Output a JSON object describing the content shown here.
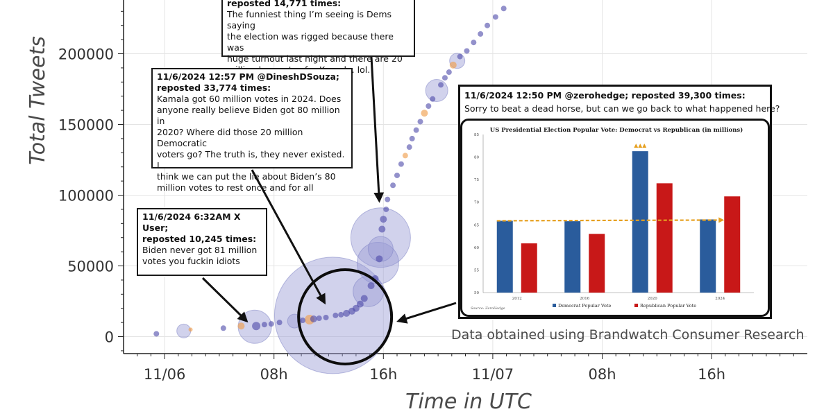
{
  "chart_data": [
    {
      "type": "scatter",
      "title": "",
      "xlabel": "Time in UTC",
      "ylabel": "Total Tweets",
      "x_tick_labels": [
        "11/06",
        "08h",
        "16h",
        "11/07",
        "08h",
        "16h"
      ],
      "x_tick_hours": [
        0,
        8,
        16,
        24,
        32,
        40
      ],
      "xlim_hours": [
        -3,
        47
      ],
      "y_ticks": [
        0,
        50000,
        100000,
        150000,
        200000
      ],
      "ylim": [
        -12000,
        238000
      ],
      "grid": true,
      "legend": "none",
      "colors": {
        "bubble_fill": "#9a9cd4",
        "bubble_dot": "#4b48a8",
        "accent_orange": "#f0a050",
        "grid": "#e4e4e4"
      },
      "points": [
        {
          "x": -0.6,
          "y": 2000,
          "r": 4,
          "c": "dot"
        },
        {
          "x": 1.4,
          "y": 4000,
          "r": 10,
          "c": "fill"
        },
        {
          "x": 1.9,
          "y": 5000,
          "r": 3,
          "c": "orange"
        },
        {
          "x": 4.3,
          "y": 6000,
          "r": 4,
          "c": "dot"
        },
        {
          "x": 5.6,
          "y": 7500,
          "r": 5,
          "c": "orange"
        },
        {
          "x": 6.6,
          "y": 7000,
          "r": 24,
          "c": "fill"
        },
        {
          "x": 6.7,
          "y": 7500,
          "r": 6,
          "c": "dot"
        },
        {
          "x": 7.3,
          "y": 8500,
          "r": 4,
          "c": "dot"
        },
        {
          "x": 7.8,
          "y": 9000,
          "r": 4,
          "c": "dot"
        },
        {
          "x": 8.4,
          "y": 10000,
          "r": 4,
          "c": "dot"
        },
        {
          "x": 9.5,
          "y": 11000,
          "r": 10,
          "c": "fill"
        },
        {
          "x": 10.1,
          "y": 11500,
          "r": 4,
          "c": "dot"
        },
        {
          "x": 10.6,
          "y": 12000,
          "r": 7,
          "c": "orange"
        },
        {
          "x": 10.9,
          "y": 12500,
          "r": 5,
          "c": "dot"
        },
        {
          "x": 11.3,
          "y": 13000,
          "r": 4,
          "c": "dot"
        },
        {
          "x": 11.8,
          "y": 13500,
          "r": 4,
          "c": "dot"
        },
        {
          "x": 12.3,
          "y": 15000,
          "r": 84,
          "c": "fill"
        },
        {
          "x": 12.5,
          "y": 15000,
          "r": 4,
          "c": "dot"
        },
        {
          "x": 12.9,
          "y": 15500,
          "r": 4,
          "c": "dot"
        },
        {
          "x": 13.3,
          "y": 16500,
          "r": 5,
          "c": "dot"
        },
        {
          "x": 13.7,
          "y": 18000,
          "r": 5,
          "c": "dot"
        },
        {
          "x": 14.0,
          "y": 20000,
          "r": 5,
          "c": "dot"
        },
        {
          "x": 14.3,
          "y": 23000,
          "r": 5,
          "c": "dot"
        },
        {
          "x": 14.6,
          "y": 27000,
          "r": 5,
          "c": "dot"
        },
        {
          "x": 14.9,
          "y": 32000,
          "r": 22,
          "c": "fill"
        },
        {
          "x": 15.1,
          "y": 36000,
          "r": 5,
          "c": "dot"
        },
        {
          "x": 15.4,
          "y": 41000,
          "r": 5,
          "c": "dot"
        },
        {
          "x": 15.6,
          "y": 52000,
          "r": 30,
          "c": "fill"
        },
        {
          "x": 15.7,
          "y": 55000,
          "r": 5,
          "c": "dot"
        },
        {
          "x": 15.8,
          "y": 62000,
          "r": 18,
          "c": "fill"
        },
        {
          "x": 15.8,
          "y": 70000,
          "r": 43,
          "c": "fill"
        },
        {
          "x": 15.9,
          "y": 76000,
          "r": 5,
          "c": "dot"
        },
        {
          "x": 16.0,
          "y": 83000,
          "r": 5,
          "c": "dot"
        },
        {
          "x": 16.2,
          "y": 90000,
          "r": 4,
          "c": "dot"
        },
        {
          "x": 16.3,
          "y": 97000,
          "r": 4,
          "c": "dot"
        },
        {
          "x": 16.7,
          "y": 107000,
          "r": 4,
          "c": "dot"
        },
        {
          "x": 17.0,
          "y": 114000,
          "r": 4,
          "c": "dot"
        },
        {
          "x": 17.3,
          "y": 122000,
          "r": 4,
          "c": "dot"
        },
        {
          "x": 17.6,
          "y": 128000,
          "r": 4,
          "c": "orange"
        },
        {
          "x": 17.9,
          "y": 134000,
          "r": 4,
          "c": "dot"
        },
        {
          "x": 18.1,
          "y": 140000,
          "r": 4,
          "c": "dot"
        },
        {
          "x": 18.4,
          "y": 146000,
          "r": 4,
          "c": "dot"
        },
        {
          "x": 18.7,
          "y": 152000,
          "r": 4,
          "c": "dot"
        },
        {
          "x": 19.0,
          "y": 158000,
          "r": 5,
          "c": "orange"
        },
        {
          "x": 19.3,
          "y": 163000,
          "r": 4,
          "c": "dot"
        },
        {
          "x": 19.6,
          "y": 168000,
          "r": 4,
          "c": "dot"
        },
        {
          "x": 19.9,
          "y": 174000,
          "r": 16,
          "c": "fill"
        },
        {
          "x": 20.2,
          "y": 178000,
          "r": 4,
          "c": "dot"
        },
        {
          "x": 20.5,
          "y": 183000,
          "r": 4,
          "c": "dot"
        },
        {
          "x": 20.8,
          "y": 187000,
          "r": 4,
          "c": "dot"
        },
        {
          "x": 21.1,
          "y": 192000,
          "r": 5,
          "c": "orange"
        },
        {
          "x": 21.4,
          "y": 195000,
          "r": 11,
          "c": "fill"
        },
        {
          "x": 21.6,
          "y": 198000,
          "r": 4,
          "c": "dot"
        },
        {
          "x": 22.1,
          "y": 202000,
          "r": 4,
          "c": "dot"
        },
        {
          "x": 22.6,
          "y": 208000,
          "r": 4,
          "c": "dot"
        },
        {
          "x": 23.1,
          "y": 214000,
          "r": 4,
          "c": "dot"
        },
        {
          "x": 23.6,
          "y": 220000,
          "r": 4,
          "c": "dot"
        },
        {
          "x": 24.2,
          "y": 226000,
          "r": 4,
          "c": "dot"
        },
        {
          "x": 24.8,
          "y": 232000,
          "r": 4,
          "c": "dot"
        }
      ],
      "highlight_circle": {
        "x": 13.2,
        "y": 14000,
        "rx": 67,
        "ry": 68
      },
      "arrows": [
        {
          "from": "callout-xuser",
          "x": 6.0,
          "y": 11000
        },
        {
          "from": "callout-dsouza",
          "x": 11.7,
          "y": 24000
        },
        {
          "from": "callout-upper",
          "x": 15.7,
          "y": 96000
        },
        {
          "from": "zerohedge-panel",
          "x": 17.1,
          "y": 11000
        }
      ]
    },
    {
      "type": "bar",
      "title": "US Presidential Election Popular Vote: Democrat vs Republican (in millions)",
      "categories": [
        "2012",
        "2016",
        "2020",
        "2024"
      ],
      "series": [
        {
          "name": "Democrat Popular Vote",
          "color": "#2a5c9c",
          "values": [
            65.9,
            65.8,
            81.3,
            66.2
          ]
        },
        {
          "name": "Republican Popular Vote",
          "color": "#c81818",
          "values": [
            60.9,
            63.0,
            74.2,
            71.3
          ]
        }
      ],
      "y_ticks": [
        50,
        55,
        60,
        65,
        70,
        75,
        80,
        85
      ],
      "ylim": [
        50,
        85
      ],
      "trend_line_value": 65.9,
      "trend_line_color": "#e6a020",
      "legend": "bottom",
      "source_label": "Source: ZeroHedge"
    }
  ],
  "callouts": {
    "upper": {
      "header": "reposted 14,771 times:",
      "body": [
        "The funniest thing I’m seeing is Dems saying",
        "the election was rigged because there was",
        "huge turnout last night and there are 20",
        "million less votes for Kamala. lol."
      ]
    },
    "dsouza": {
      "header": [
        "11/6/2024  12:57 PM @DineshDSouza;",
        "reposted 33,774 times:"
      ],
      "body": [
        "Kamala got 60 million votes in 2024. Does",
        "anyone really believe Biden got 80 million in",
        "2020? Where did those 20 million Democratic",
        "voters go? The truth is, they never existed. I",
        "think we can put the lie about Biden’s 80",
        "million votes to rest once and for all"
      ]
    },
    "xuser": {
      "header": [
        "11/6/2024 6:32AM X User;",
        "reposted 10,245 times:"
      ],
      "body": [
        "Biden never got 81 million",
        "votes you fuckin idiots"
      ]
    },
    "zerohedge": {
      "header": "11/6/2024  12:50 PM @zerohedge; reposted 39,300 times:",
      "body": "Sorry to beat a dead horse, but can we go back to what happened here?"
    }
  },
  "source_note": "Data obtained using Brandwatch Consumer Research"
}
